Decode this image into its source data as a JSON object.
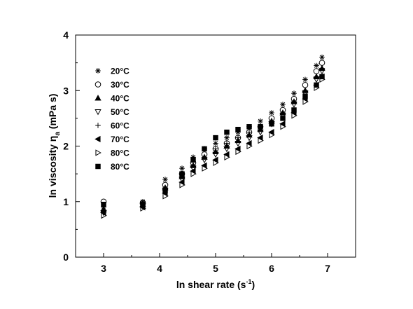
{
  "chart_data": {
    "type": "scatter",
    "title": "",
    "xlabel_main": "ln shear rate (s",
    "xlabel_sup": "-1",
    "xlabel_end": ")",
    "ylabel_main": "ln viscosity η",
    "ylabel_sub": "a",
    "ylabel_end": " (mPa s)",
    "xlim": [
      2.5,
      7.5
    ],
    "ylim": [
      0,
      4
    ],
    "xticks": [
      3,
      4,
      5,
      6,
      7
    ],
    "yticks": [
      0,
      1,
      2,
      3,
      4
    ],
    "grid": false,
    "legend_position": "upper-left",
    "series": [
      {
        "name": "20°C",
        "marker": "asterisk",
        "points": [
          [
            3.0,
            0.9
          ],
          [
            3.7,
            1.0
          ],
          [
            4.1,
            1.4
          ],
          [
            4.4,
            1.6
          ],
          [
            4.6,
            1.8
          ],
          [
            4.8,
            1.95
          ],
          [
            5.0,
            2.05
          ],
          [
            5.2,
            2.15
          ],
          [
            5.4,
            2.25
          ],
          [
            5.6,
            2.35
          ],
          [
            5.8,
            2.45
          ],
          [
            6.0,
            2.6
          ],
          [
            6.2,
            2.75
          ],
          [
            6.4,
            2.95
          ],
          [
            6.6,
            3.2
          ],
          [
            6.8,
            3.45
          ],
          [
            6.9,
            3.6
          ]
        ]
      },
      {
        "name": "30°C",
        "marker": "circle",
        "points": [
          [
            3.0,
            1.0
          ],
          [
            3.7,
            0.98
          ],
          [
            4.1,
            1.3
          ],
          [
            4.4,
            1.5
          ],
          [
            4.6,
            1.7
          ],
          [
            4.8,
            1.85
          ],
          [
            5.0,
            1.95
          ],
          [
            5.2,
            2.05
          ],
          [
            5.4,
            2.15
          ],
          [
            5.6,
            2.25
          ],
          [
            5.8,
            2.35
          ],
          [
            6.0,
            2.5
          ],
          [
            6.2,
            2.65
          ],
          [
            6.4,
            2.85
          ],
          [
            6.6,
            3.1
          ],
          [
            6.8,
            3.35
          ],
          [
            6.9,
            3.5
          ]
        ]
      },
      {
        "name": "40°C",
        "marker": "triangle-up",
        "points": [
          [
            3.0,
            0.85
          ],
          [
            3.7,
            0.95
          ],
          [
            4.1,
            1.25
          ],
          [
            4.4,
            1.45
          ],
          [
            4.6,
            1.65
          ],
          [
            4.8,
            1.8
          ],
          [
            5.0,
            1.9
          ],
          [
            5.2,
            2.0
          ],
          [
            5.4,
            2.1
          ],
          [
            5.6,
            2.2
          ],
          [
            5.8,
            2.3
          ],
          [
            6.0,
            2.45
          ],
          [
            6.2,
            2.6
          ],
          [
            6.4,
            2.8
          ],
          [
            6.6,
            3.0
          ],
          [
            6.8,
            3.25
          ],
          [
            6.9,
            3.4
          ]
        ]
      },
      {
        "name": "50°C",
        "marker": "triangle-down",
        "points": [
          [
            3.0,
            0.8
          ],
          [
            3.7,
            0.92
          ],
          [
            4.1,
            1.2
          ],
          [
            4.4,
            1.4
          ],
          [
            4.6,
            1.6
          ],
          [
            4.8,
            1.75
          ],
          [
            5.0,
            1.85
          ],
          [
            5.2,
            1.95
          ],
          [
            5.4,
            2.05
          ],
          [
            5.6,
            2.15
          ],
          [
            5.8,
            2.25
          ],
          [
            6.0,
            2.4
          ],
          [
            6.2,
            2.55
          ],
          [
            6.4,
            2.75
          ],
          [
            6.6,
            2.95
          ],
          [
            6.8,
            3.2
          ],
          [
            6.9,
            3.35
          ]
        ]
      },
      {
        "name": "60°C",
        "marker": "plus",
        "points": [
          [
            3.0,
            0.85
          ],
          [
            3.7,
            0.95
          ],
          [
            4.1,
            1.25
          ],
          [
            4.4,
            1.45
          ],
          [
            4.6,
            1.65
          ],
          [
            4.8,
            1.8
          ],
          [
            5.0,
            1.95
          ],
          [
            5.2,
            2.05
          ],
          [
            5.4,
            2.15
          ],
          [
            5.6,
            2.25
          ],
          [
            5.8,
            2.35
          ],
          [
            6.0,
            2.45
          ],
          [
            6.2,
            2.6
          ],
          [
            6.4,
            2.8
          ],
          [
            6.6,
            3.0
          ],
          [
            6.8,
            3.25
          ],
          [
            6.9,
            3.4
          ]
        ]
      },
      {
        "name": "70°C",
        "marker": "triangle-left",
        "points": [
          [
            3.0,
            0.8
          ],
          [
            3.7,
            0.9
          ],
          [
            4.1,
            1.15
          ],
          [
            4.4,
            1.35
          ],
          [
            4.6,
            1.55
          ],
          [
            4.8,
            1.65
          ],
          [
            5.0,
            1.75
          ],
          [
            5.2,
            1.85
          ],
          [
            5.4,
            1.95
          ],
          [
            5.6,
            2.05
          ],
          [
            5.8,
            2.15
          ],
          [
            6.0,
            2.25
          ],
          [
            6.2,
            2.4
          ],
          [
            6.4,
            2.6
          ],
          [
            6.6,
            2.85
          ],
          [
            6.8,
            3.1
          ],
          [
            6.9,
            3.25
          ]
        ]
      },
      {
        "name": "80°C",
        "marker": "triangle-right",
        "points": [
          [
            3.0,
            0.75
          ],
          [
            3.7,
            0.88
          ],
          [
            4.1,
            1.1
          ],
          [
            4.4,
            1.3
          ],
          [
            4.6,
            1.5
          ],
          [
            4.8,
            1.6
          ],
          [
            5.0,
            1.7
          ],
          [
            5.2,
            1.8
          ],
          [
            5.4,
            1.9
          ],
          [
            5.6,
            2.0
          ],
          [
            5.8,
            2.1
          ],
          [
            6.0,
            2.2
          ],
          [
            6.2,
            2.35
          ],
          [
            6.4,
            2.55
          ],
          [
            6.6,
            2.8
          ],
          [
            6.8,
            3.05
          ],
          [
            6.9,
            3.2
          ]
        ]
      },
      {
        "name": "80°C",
        "marker": "square",
        "points": [
          [
            3.0,
            0.95
          ],
          [
            3.7,
            0.95
          ],
          [
            4.1,
            1.2
          ],
          [
            4.4,
            1.5
          ],
          [
            4.6,
            1.75
          ],
          [
            4.8,
            1.95
          ],
          [
            5.0,
            2.15
          ],
          [
            5.2,
            2.25
          ],
          [
            5.4,
            2.3
          ],
          [
            5.6,
            2.35
          ],
          [
            5.8,
            2.35
          ],
          [
            6.0,
            2.4
          ],
          [
            6.2,
            2.5
          ],
          [
            6.4,
            2.65
          ],
          [
            6.6,
            2.9
          ],
          [
            6.8,
            3.1
          ],
          [
            6.9,
            3.25
          ]
        ]
      }
    ]
  }
}
